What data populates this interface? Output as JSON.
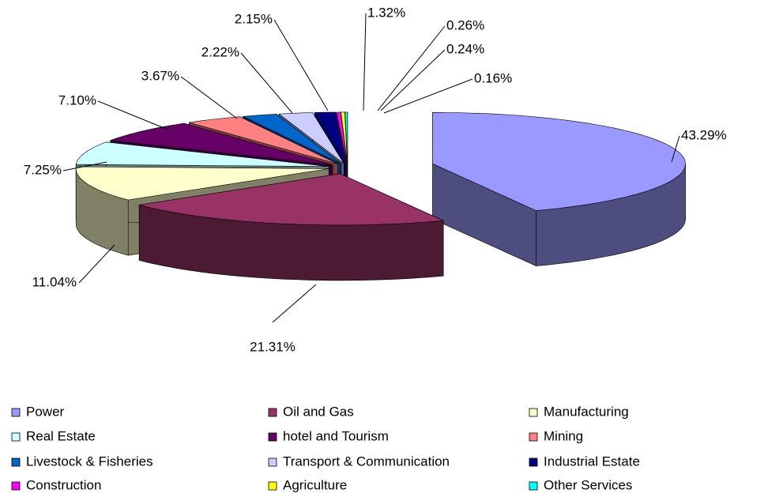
{
  "chart_data": {
    "type": "pie3d",
    "categories": [
      "Power",
      "Oil and Gas",
      "Manufacturing",
      "Real Estate",
      "hotel and Tourism",
      "Mining",
      "Livestock & Fisheries",
      "Transport & Communication",
      "Industrial Estate",
      "Construction",
      "Agriculture",
      "Other Services"
    ],
    "values": [
      43.29,
      21.31,
      11.04,
      7.25,
      7.1,
      3.67,
      2.22,
      2.15,
      1.32,
      0.26,
      0.24,
      0.16
    ],
    "value_labels": [
      "43.29%",
      "21.31%",
      "11.04%",
      "7.25%",
      "7.10%",
      "3.67%",
      "2.22%",
      "2.15%",
      "1.32%",
      "0.26%",
      "0.24%",
      "0.16%"
    ],
    "colors": [
      "#9999ff",
      "#993366",
      "#ffffcc",
      "#ccffff",
      "#660066",
      "#ff8080",
      "#0066cc",
      "#ccccff",
      "#000080",
      "#ff00ff",
      "#ffff00",
      "#00ffff"
    ],
    "legend": "bottom"
  }
}
